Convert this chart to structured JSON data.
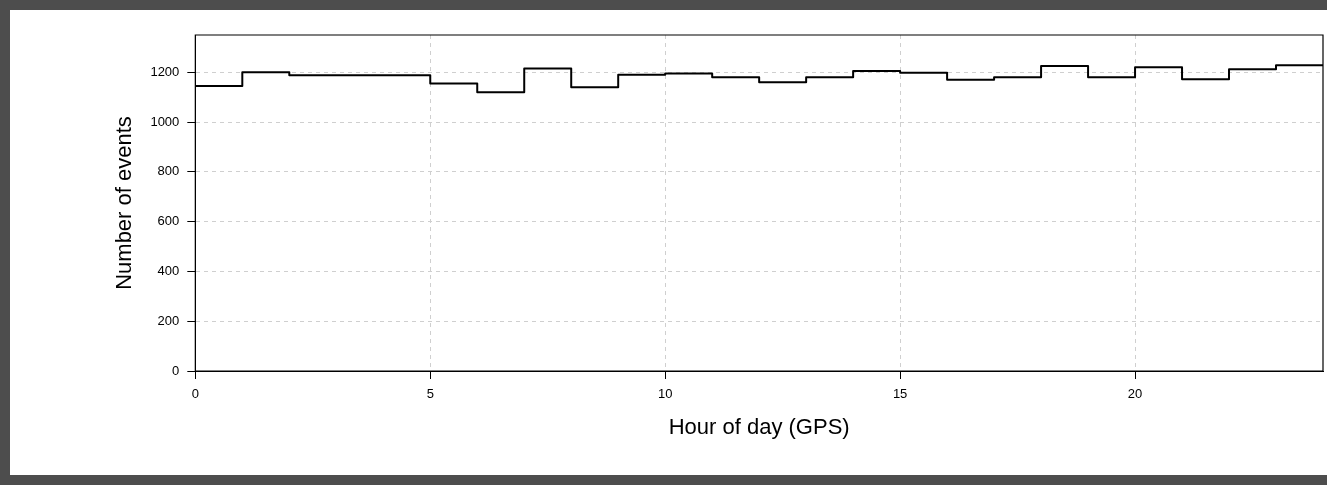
{
  "chart_data": {
    "type": "histogram",
    "xlabel": "Hour of day (GPS)",
    "ylabel": "Number of events",
    "bins": [
      0,
      1,
      2,
      3,
      4,
      5,
      6,
      7,
      8,
      9,
      10,
      11,
      12,
      13,
      14,
      15,
      16,
      17,
      18,
      19,
      20,
      21,
      22,
      23,
      24
    ],
    "values": [
      1145,
      1200,
      1188,
      1188,
      1188,
      1155,
      1120,
      1215,
      1140,
      1190,
      1195,
      1180,
      1160,
      1180,
      1205,
      1198,
      1170,
      1180,
      1225,
      1180,
      1220,
      1172,
      1212,
      1228
    ],
    "color": "#000000",
    "xlim": [
      0,
      24
    ],
    "xticks": [
      0,
      5,
      10,
      15,
      20
    ],
    "ylim": [
      0,
      1350
    ],
    "yticks": [
      0,
      200,
      400,
      600,
      800,
      1000,
      1200
    ],
    "grid": true
  }
}
